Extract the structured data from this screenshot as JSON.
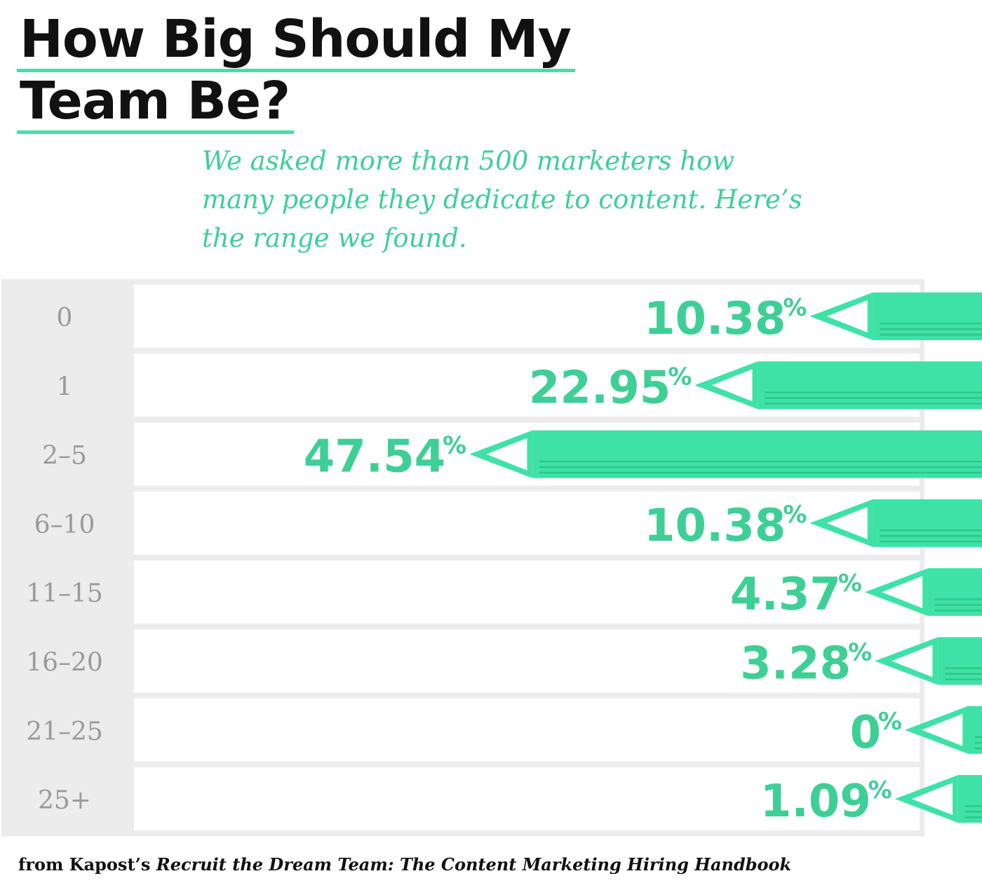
{
  "header": {
    "title_line1": "How Big Should My",
    "title_line2": "Team Be?",
    "subtitle": "We asked more than 500 marketers how many people they dedicate to content. Here’s the range we found."
  },
  "footer": {
    "prefix": "from Kapost’s ",
    "book_title": "Recruit the Dream Team: The Content Marketing Hiring Handbook"
  },
  "colors": {
    "accent": "#3ee2a6",
    "accent_dark": "#2fc58b",
    "label_green": "#3ecf96",
    "panel_gray": "#ececec",
    "category_text": "#9a9a9a",
    "title_text": "#111111"
  },
  "chart_data": {
    "type": "bar",
    "orientation": "horizontal",
    "direction": "right-to-left",
    "mark_style": "pencil",
    "categories": [
      "0",
      "1",
      "2–5",
      "6–10",
      "11–15",
      "16–20",
      "21–25",
      "25+"
    ],
    "values": [
      10.38,
      22.95,
      47.54,
      10.38,
      4.37,
      3.28,
      0,
      1.09
    ],
    "value_labels": [
      "10.38",
      "22.95",
      "47.54",
      "10.38",
      "4.37",
      "3.28",
      "0",
      "1.09"
    ],
    "unit": "%",
    "title": "How Big Should My Team Be?",
    "xlabel": "",
    "ylabel": "",
    "grid": false,
    "legend": "none"
  }
}
